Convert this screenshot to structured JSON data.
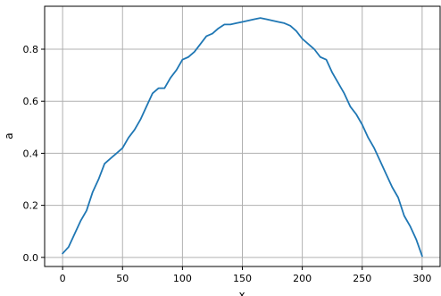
{
  "chart_data": {
    "type": "line",
    "xlabel": "x",
    "ylabel": "a",
    "xlim": [
      -15,
      315
    ],
    "ylim": [
      -0.035,
      0.965
    ],
    "grid": true,
    "xticks": [
      0,
      50,
      100,
      150,
      200,
      250,
      300
    ],
    "xtick_labels": [
      "0",
      "50",
      "100",
      "150",
      "200",
      "250",
      "300"
    ],
    "yticks": [
      0.0,
      0.2,
      0.4,
      0.6,
      0.8
    ],
    "ytick_labels": [
      "0.0",
      "0.2",
      "0.4",
      "0.6",
      "0.8"
    ],
    "series": [
      {
        "color": "#1f77b4",
        "x": [
          0,
          5,
          10,
          15,
          20,
          25,
          30,
          35,
          40,
          45,
          50,
          55,
          60,
          65,
          70,
          75,
          80,
          85,
          90,
          95,
          100,
          105,
          110,
          115,
          120,
          125,
          130,
          135,
          140,
          145,
          150,
          155,
          160,
          165,
          170,
          175,
          180,
          185,
          190,
          195,
          200,
          205,
          210,
          215,
          220,
          225,
          230,
          235,
          240,
          245,
          250,
          255,
          260,
          265,
          270,
          275,
          280,
          285,
          290,
          295,
          300
        ],
        "y": [
          0.015,
          0.04,
          0.09,
          0.14,
          0.18,
          0.25,
          0.3,
          0.36,
          0.38,
          0.4,
          0.42,
          0.46,
          0.49,
          0.53,
          0.58,
          0.63,
          0.65,
          0.65,
          0.69,
          0.72,
          0.76,
          0.77,
          0.79,
          0.82,
          0.85,
          0.86,
          0.88,
          0.895,
          0.895,
          0.9,
          0.905,
          0.91,
          0.915,
          0.92,
          0.915,
          0.91,
          0.905,
          0.9,
          0.89,
          0.87,
          0.84,
          0.82,
          0.8,
          0.77,
          0.76,
          0.71,
          0.67,
          0.63,
          0.58,
          0.55,
          0.51,
          0.46,
          0.42,
          0.37,
          0.32,
          0.27,
          0.23,
          0.16,
          0.12,
          0.07,
          0.005
        ]
      }
    ]
  }
}
